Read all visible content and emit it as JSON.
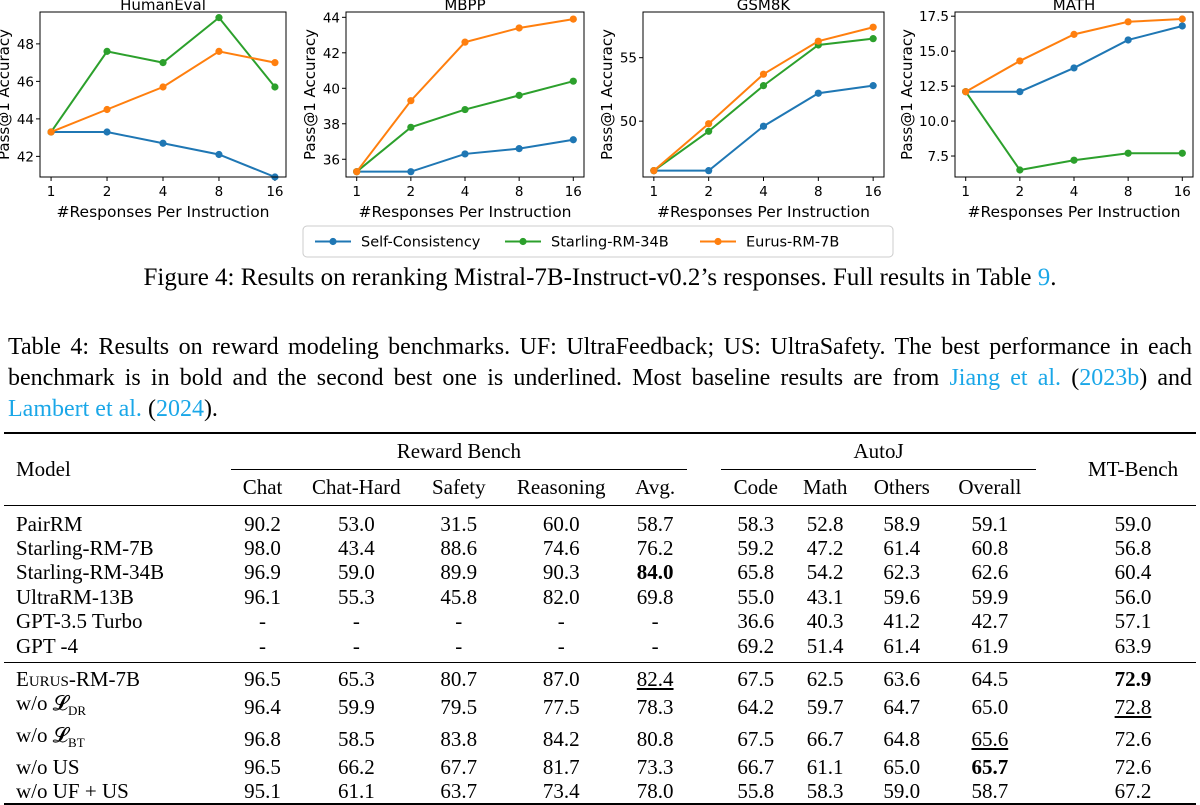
{
  "figure": {
    "y_axis_label": "Pass@1 Accuracy",
    "x_axis_label": "#Responses Per Instruction",
    "legend": [
      "Self-Consistency",
      "Starling-RM-34B",
      "Eurus-RM-7B"
    ],
    "colors": {
      "Self-Consistency": "#1f77b4",
      "Starling-RM-34B": "#2ca02c",
      "Eurus-RM-7B": "#ff7f0e"
    },
    "caption_prefix": "Figure 4: Results on reranking Mistral-7B-Instruct-v0.2’s responses. Full results in Table ",
    "caption_ref": "9",
    "caption_suffix": "."
  },
  "chart_data": [
    {
      "type": "line",
      "title": "HumanEval",
      "x": [
        "1",
        "2",
        "4",
        "8",
        "16"
      ],
      "ylabel": "Pass@1 Accuracy",
      "xlabel": "#Responses Per Instruction",
      "ylim": [
        40.9,
        49.7
      ],
      "yticks": [
        42,
        44,
        46,
        48
      ],
      "series": [
        {
          "name": "Self-Consistency",
          "values": [
            43.3,
            43.3,
            42.7,
            42.1,
            40.9
          ]
        },
        {
          "name": "Starling-RM-34B",
          "values": [
            43.3,
            47.6,
            47.0,
            49.4,
            45.7
          ]
        },
        {
          "name": "Eurus-RM-7B",
          "values": [
            43.3,
            44.5,
            45.7,
            47.6,
            47.0
          ]
        }
      ]
    },
    {
      "type": "line",
      "title": "MBPP",
      "x": [
        "1",
        "2",
        "4",
        "8",
        "16"
      ],
      "ylabel": "Pass@1 Accuracy",
      "xlabel": "#Responses Per Instruction",
      "ylim": [
        35.0,
        44.3
      ],
      "yticks": [
        36,
        38,
        40,
        42,
        44
      ],
      "series": [
        {
          "name": "Self-Consistency",
          "values": [
            35.3,
            35.3,
            36.3,
            36.6,
            37.1
          ]
        },
        {
          "name": "Starling-RM-34B",
          "values": [
            35.3,
            37.8,
            38.8,
            39.6,
            40.4
          ]
        },
        {
          "name": "Eurus-RM-7B",
          "values": [
            35.3,
            39.3,
            42.6,
            43.4,
            43.9
          ]
        }
      ]
    },
    {
      "type": "line",
      "title": "GSM8K",
      "x": [
        "1",
        "2",
        "4",
        "8",
        "16"
      ],
      "ylabel": "Pass@1 Accuracy",
      "xlabel": "#Responses Per Instruction",
      "ylim": [
        45.6,
        58.6
      ],
      "yticks": [
        50,
        55
      ],
      "series": [
        {
          "name": "Self-Consistency",
          "values": [
            46.1,
            46.1,
            49.6,
            52.2,
            52.8
          ]
        },
        {
          "name": "Starling-RM-34B",
          "values": [
            46.1,
            49.2,
            52.8,
            56.0,
            56.5
          ]
        },
        {
          "name": "Eurus-RM-7B",
          "values": [
            46.1,
            49.8,
            53.7,
            56.3,
            57.4
          ]
        }
      ]
    },
    {
      "type": "line",
      "title": "MATH",
      "x": [
        "1",
        "2",
        "4",
        "8",
        "16"
      ],
      "ylabel": "Pass@1 Accuracy",
      "xlabel": "#Responses Per Instruction",
      "ylim": [
        6.0,
        17.8
      ],
      "yticks": [
        "7.5",
        "10.0",
        "12.5",
        "15.0",
        "17.5"
      ],
      "series": [
        {
          "name": "Self-Consistency",
          "values": [
            12.1,
            12.1,
            13.8,
            15.8,
            16.8
          ]
        },
        {
          "name": "Starling-RM-34B",
          "values": [
            12.1,
            6.5,
            7.2,
            7.7,
            7.7
          ]
        },
        {
          "name": "Eurus-RM-7B",
          "values": [
            12.1,
            14.3,
            16.2,
            17.1,
            17.3
          ]
        }
      ]
    }
  ],
  "table_caption": {
    "text": "Table 4: Results on reward modeling benchmarks. UF: UltraFeedback; US: UltraSafety. The best performance in each benchmark is in bold and the second best one is underlined. Most baseline results are from ",
    "ref1": "Jiang et al.",
    "ref1_year": "2023b",
    "mid": " and ",
    "ref2": "Lambert et al.",
    "ref2_year": "2024",
    "end": ")."
  },
  "table": {
    "model_header": "Model",
    "group_reward": "Reward Bench",
    "group_autoj": "AutoJ",
    "mtbench_header": "MT-Bench",
    "sub_headers": [
      "Chat",
      "Chat-Hard",
      "Safety",
      "Reasoning",
      "Avg.",
      "Code",
      "Math",
      "Others",
      "Overall"
    ],
    "baseline_rows": [
      [
        "PairRM",
        "90.2",
        "53.0",
        "31.5",
        "60.0",
        "58.7",
        "58.3",
        "52.8",
        "58.9",
        "59.1",
        "59.0"
      ],
      [
        "Starling-RM-7B",
        "98.0",
        "43.4",
        "88.6",
        "74.6",
        "76.2",
        "59.2",
        "47.2",
        "61.4",
        "60.8",
        "56.8"
      ],
      [
        "Starling-RM-34B",
        "96.9",
        "59.0",
        "89.9",
        "90.3",
        "84.0",
        "65.8",
        "54.2",
        "62.3",
        "62.6",
        "60.4"
      ],
      [
        "UltraRM-13B",
        "96.1",
        "55.3",
        "45.8",
        "82.0",
        "69.8",
        "55.0",
        "43.1",
        "59.6",
        "59.9",
        "56.0"
      ],
      [
        "GPT-3.5 Turbo",
        "-",
        "-",
        "-",
        "-",
        "-",
        "36.6",
        "40.3",
        "41.2",
        "42.7",
        "57.1"
      ],
      [
        "GPT -4",
        "-",
        "-",
        "-",
        "-",
        "-",
        "69.2",
        "51.4",
        "61.4",
        "61.9",
        "63.9"
      ]
    ],
    "ours_rows": [
      [
        "Eurus-RM-7B",
        "96.5",
        "65.3",
        "80.7",
        "87.0",
        "82.4",
        "67.5",
        "62.5",
        "63.6",
        "64.5",
        "72.9"
      ],
      [
        "w/o 𝓛",
        "96.4",
        "59.9",
        "79.5",
        "77.5",
        "78.3",
        "64.2",
        "59.7",
        "64.7",
        "65.0",
        "72.8"
      ],
      [
        "w/o 𝓛",
        "96.8",
        "58.5",
        "83.8",
        "84.2",
        "80.8",
        "67.5",
        "66.7",
        "64.8",
        "65.6",
        "72.6"
      ],
      [
        "w/o US",
        "96.5",
        "66.2",
        "67.7",
        "81.7",
        "73.3",
        "66.7",
        "61.1",
        "65.0",
        "65.7",
        "72.6"
      ],
      [
        "w/o UF + US",
        "95.1",
        "61.1",
        "63.7",
        "73.4",
        "78.0",
        "55.8",
        "58.3",
        "59.0",
        "58.7",
        "67.2"
      ]
    ],
    "subscripts": {
      "row1": "DR",
      "row2": "BT"
    },
    "bold_cells": [
      [
        "baseline",
        2,
        5
      ],
      [
        "ours",
        0,
        10
      ],
      [
        "ours",
        3,
        9
      ]
    ],
    "underline_cells": [
      [
        "ours",
        0,
        5
      ],
      [
        "ours",
        1,
        10
      ],
      [
        "ours",
        2,
        9
      ]
    ]
  }
}
